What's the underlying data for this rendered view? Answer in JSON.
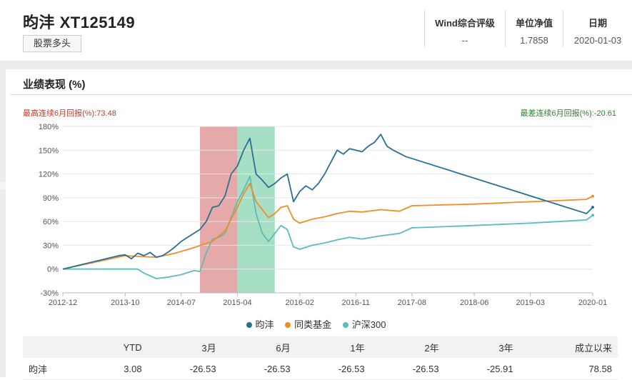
{
  "fund": {
    "name": "昀沣 XT125149",
    "tag": "股票多头"
  },
  "metrics": [
    {
      "label": "Wind综合评级",
      "value": "--"
    },
    {
      "label": "单位净值",
      "value": "1.7858"
    },
    {
      "label": "日期",
      "value": "2020-01-03"
    }
  ],
  "panel": {
    "title": "业绩表现 (%)",
    "note_left": "最高连续6月回报(%):73.48",
    "note_right": "最差连续6月回报(%):-20.61"
  },
  "colors": {
    "fund": "#2a6f97",
    "peer": "#f28c28",
    "index": "#5cbcb9",
    "band_best": "#e29a9a",
    "band_worst": "#97d9b8"
  },
  "chart_data": {
    "type": "line",
    "ylim": [
      -30,
      180
    ],
    "yticks": [
      -30,
      0,
      30,
      60,
      90,
      120,
      150,
      180
    ],
    "ytick_labels": [
      "-30%",
      "0%",
      "30%",
      "60%",
      "90%",
      "120%",
      "150%",
      "180%"
    ],
    "xlim": [
      "2012-12",
      "2020-01"
    ],
    "xticks": [
      "2012-12",
      "2013-10",
      "2014-07",
      "2015-04",
      "2016-02",
      "2016-11",
      "2017-08",
      "2018-06",
      "2019-03",
      "2020-01"
    ],
    "bands": [
      {
        "label": "最高连续6月回报",
        "start": "2014-10",
        "end": "2015-04"
      },
      {
        "label": "最差连续6月回报",
        "start": "2015-04",
        "end": "2015-10"
      }
    ],
    "series": [
      {
        "name": "昀沣",
        "color": "#2a6f97",
        "points": [
          [
            "2012-12",
            0
          ],
          [
            "2013-09",
            17
          ],
          [
            "2013-10",
            18
          ],
          [
            "2013-11",
            13
          ],
          [
            "2013-12",
            20
          ],
          [
            "2014-01",
            17
          ],
          [
            "2014-02",
            21
          ],
          [
            "2014-03",
            15
          ],
          [
            "2014-04",
            17
          ],
          [
            "2014-05",
            22
          ],
          [
            "2014-06",
            28
          ],
          [
            "2014-07",
            35
          ],
          [
            "2014-08",
            40
          ],
          [
            "2014-09",
            45
          ],
          [
            "2014-10",
            50
          ],
          [
            "2014-11",
            60
          ],
          [
            "2014-12",
            78
          ],
          [
            "2015-01",
            80
          ],
          [
            "2015-02",
            92
          ],
          [
            "2015-03",
            120
          ],
          [
            "2015-04",
            130
          ],
          [
            "2015-05",
            150
          ],
          [
            "2015-06",
            165
          ],
          [
            "2015-07",
            120
          ],
          [
            "2015-08",
            112
          ],
          [
            "2015-09",
            103
          ],
          [
            "2015-10",
            108
          ],
          [
            "2015-11",
            115
          ],
          [
            "2015-12",
            120
          ],
          [
            "2016-01",
            85
          ],
          [
            "2016-02",
            98
          ],
          [
            "2016-03",
            105
          ],
          [
            "2016-04",
            100
          ],
          [
            "2016-05",
            108
          ],
          [
            "2016-06",
            120
          ],
          [
            "2016-07",
            135
          ],
          [
            "2016-08",
            150
          ],
          [
            "2016-09",
            145
          ],
          [
            "2016-10",
            152
          ],
          [
            "2016-11",
            150
          ],
          [
            "2016-12",
            148
          ],
          [
            "2017-01",
            155
          ],
          [
            "2017-02",
            160
          ],
          [
            "2017-03",
            170
          ],
          [
            "2017-04",
            155
          ],
          [
            "2017-05",
            150
          ],
          [
            "2017-06",
            146
          ],
          [
            "2017-07",
            142
          ],
          [
            "2019-12",
            70
          ],
          [
            "2020-01",
            78
          ]
        ]
      },
      {
        "name": "同类基金",
        "color": "#f28c28",
        "points": [
          [
            "2012-12",
            0
          ],
          [
            "2013-10",
            17
          ],
          [
            "2013-12",
            16
          ],
          [
            "2014-03",
            15
          ],
          [
            "2014-06",
            20
          ],
          [
            "2014-09",
            27
          ],
          [
            "2014-12",
            35
          ],
          [
            "2015-02",
            48
          ],
          [
            "2015-04",
            78
          ],
          [
            "2015-05",
            95
          ],
          [
            "2015-06",
            108
          ],
          [
            "2015-07",
            85
          ],
          [
            "2015-08",
            75
          ],
          [
            "2015-09",
            65
          ],
          [
            "2015-10",
            70
          ],
          [
            "2015-11",
            78
          ],
          [
            "2015-12",
            80
          ],
          [
            "2016-01",
            63
          ],
          [
            "2016-02",
            58
          ],
          [
            "2016-04",
            63
          ],
          [
            "2016-06",
            66
          ],
          [
            "2016-08",
            70
          ],
          [
            "2016-10",
            73
          ],
          [
            "2016-12",
            72
          ],
          [
            "2017-03",
            75
          ],
          [
            "2017-06",
            73
          ],
          [
            "2017-08",
            80
          ],
          [
            "2018-06",
            82
          ],
          [
            "2019-03",
            85
          ],
          [
            "2019-12",
            88
          ],
          [
            "2020-01",
            92
          ]
        ]
      },
      {
        "name": "沪深300",
        "color": "#5cbcb9",
        "points": [
          [
            "2012-12",
            0
          ],
          [
            "2013-12",
            0
          ],
          [
            "2014-01",
            -5
          ],
          [
            "2014-03",
            -12
          ],
          [
            "2014-05",
            -10
          ],
          [
            "2014-07",
            -7
          ],
          [
            "2014-09",
            -2
          ],
          [
            "2014-10",
            -3
          ],
          [
            "2014-11",
            20
          ],
          [
            "2014-12",
            38
          ],
          [
            "2015-01",
            40
          ],
          [
            "2015-02",
            45
          ],
          [
            "2015-03",
            65
          ],
          [
            "2015-04",
            85
          ],
          [
            "2015-05",
            100
          ],
          [
            "2015-06",
            117
          ],
          [
            "2015-07",
            70
          ],
          [
            "2015-08",
            45
          ],
          [
            "2015-09",
            35
          ],
          [
            "2015-10",
            45
          ],
          [
            "2015-11",
            55
          ],
          [
            "2015-12",
            50
          ],
          [
            "2016-01",
            28
          ],
          [
            "2016-02",
            25
          ],
          [
            "2016-04",
            30
          ],
          [
            "2016-06",
            33
          ],
          [
            "2016-08",
            37
          ],
          [
            "2016-10",
            40
          ],
          [
            "2016-12",
            38
          ],
          [
            "2017-03",
            42
          ],
          [
            "2017-06",
            45
          ],
          [
            "2017-08",
            52
          ],
          [
            "2018-06",
            55
          ],
          [
            "2019-03",
            58
          ],
          [
            "2019-12",
            62
          ],
          [
            "2020-01",
            68
          ]
        ]
      }
    ]
  },
  "legend": [
    "昀沣",
    "同类基金",
    "沪深300"
  ],
  "table": {
    "headers": [
      "",
      "YTD",
      "3月",
      "6月",
      "1年",
      "2年",
      "3年",
      "成立以来"
    ],
    "rows": [
      [
        "昀沣",
        "3.08",
        "-26.53",
        "-26.53",
        "-26.53",
        "-26.53",
        "-25.91",
        "78.58"
      ]
    ]
  }
}
